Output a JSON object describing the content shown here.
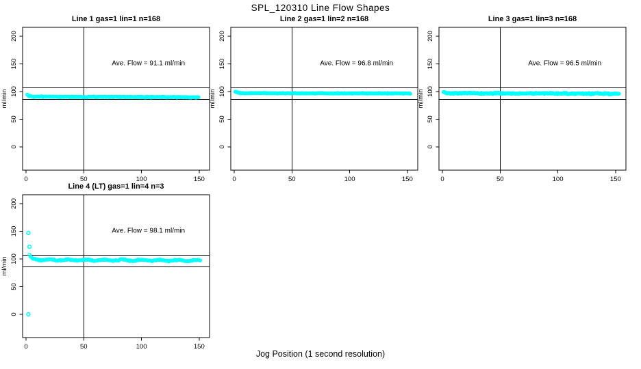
{
  "figure": {
    "title": "SPL_120310  Line Flow Shapes",
    "x_axis_label": "Jog Position (1 second resolution)",
    "background": "#ffffff",
    "foreground": "#000000"
  },
  "chart_data": {
    "type": "scatter",
    "point_color": "#00FFFF",
    "point_style": "open-circle",
    "axis_color": "#000000",
    "x_ticks": [
      0,
      50,
      100,
      150
    ],
    "y_ticks": [
      0,
      50,
      100,
      150,
      200
    ],
    "xlim": [
      -3,
      159
    ],
    "ylim": [
      -42,
      216
    ],
    "ylabel": "ml/min",
    "ref_hlines": [
      86,
      107
    ],
    "ref_vline": 50,
    "annotation_pos": {
      "x": 106,
      "y": 151
    },
    "panels": [
      {
        "title": "Line 1 gas=1 lin=1 n=168",
        "annotation": "Ave. Flow =  91.1  ml/min",
        "ave_flow_ml_min": 91.1,
        "gas": 1,
        "lin": 1,
        "n": 168,
        "series": {
          "x_start": 1,
          "x_end": 150,
          "step": 0.75,
          "seed": 7,
          "trend": [
            [
              1,
              94.5
            ],
            [
              2.5,
              92.0
            ],
            [
              6,
              90.8
            ],
            [
              40,
              90.3
            ],
            [
              150,
              89.8
            ]
          ],
          "noise": 0.9,
          "wave": [
            0,
            1
          ]
        },
        "outliers": []
      },
      {
        "title": "Line 2 gas=1 lin=2 n=168",
        "annotation": "Ave. Flow =  96.8  ml/min",
        "ave_flow_ml_min": 96.8,
        "gas": 1,
        "lin": 2,
        "n": 168,
        "series": {
          "x_start": 1,
          "x_end": 153,
          "step": 0.75,
          "seed": 13,
          "trend": [
            [
              1,
              100.0
            ],
            [
              3,
              98.0
            ],
            [
              8,
              97.2
            ],
            [
              153,
              96.6
            ]
          ],
          "noise": 0.8,
          "wave": [
            0,
            1
          ]
        },
        "outliers": []
      },
      {
        "title": "Line 3 gas=1 lin=3 n=168",
        "annotation": "Ave. Flow =  96.5  ml/min",
        "ave_flow_ml_min": 96.5,
        "gas": 1,
        "lin": 3,
        "n": 168,
        "series": {
          "x_start": 1,
          "x_end": 153,
          "step": 0.7,
          "seed": 21,
          "trend": [
            [
              1,
              98.5
            ],
            [
              4,
              97.0
            ],
            [
              153,
              96.2
            ]
          ],
          "noise": 1.5,
          "wave": [
            0,
            1
          ]
        },
        "outliers": []
      },
      {
        "title": "Line 4 (LT) gas=1 lin=4 n=3",
        "annotation": "Ave. Flow =  98.1  ml/min",
        "ave_flow_ml_min": 98.1,
        "gas": 1,
        "lin": 4,
        "n": 3,
        "series": {
          "x_start": 3,
          "x_end": 151,
          "step": 0.85,
          "seed": 29,
          "trend": [
            [
              3,
              106.0
            ],
            [
              5,
              100.5
            ],
            [
              12,
              98.3
            ],
            [
              151,
              97.2
            ]
          ],
          "noise": 1.2,
          "wave": [
            1.0,
            16
          ]
        },
        "outliers": [
          [
            2,
            147
          ],
          [
            3,
            122
          ],
          [
            2,
            0
          ]
        ]
      }
    ]
  }
}
